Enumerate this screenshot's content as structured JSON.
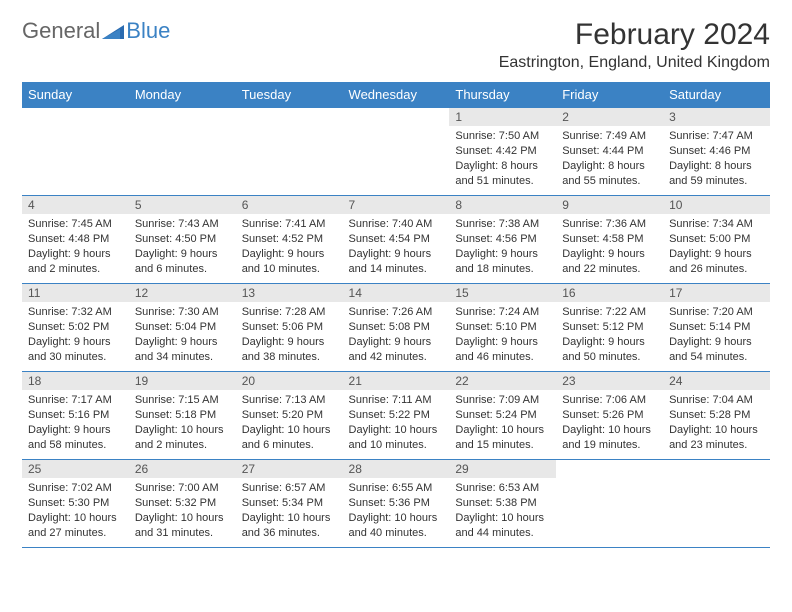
{
  "brand": {
    "part1": "General",
    "part2": "Blue",
    "accent": "#3b82c4",
    "gray": "#666"
  },
  "title": {
    "month": "February 2024",
    "location": "Eastrington, England, United Kingdom"
  },
  "colors": {
    "headerBg": "#3b82c4",
    "headerText": "#ffffff",
    "dayNumBg": "#e8e8e8",
    "border": "#3b82c4",
    "text": "#333333"
  },
  "dayNames": [
    "Sunday",
    "Monday",
    "Tuesday",
    "Wednesday",
    "Thursday",
    "Friday",
    "Saturday"
  ],
  "weeks": [
    [
      null,
      null,
      null,
      null,
      {
        "n": "1",
        "sr": "Sunrise: 7:50 AM",
        "ss": "Sunset: 4:42 PM",
        "dl": "Daylight: 8 hours and 51 minutes."
      },
      {
        "n": "2",
        "sr": "Sunrise: 7:49 AM",
        "ss": "Sunset: 4:44 PM",
        "dl": "Daylight: 8 hours and 55 minutes."
      },
      {
        "n": "3",
        "sr": "Sunrise: 7:47 AM",
        "ss": "Sunset: 4:46 PM",
        "dl": "Daylight: 8 hours and 59 minutes."
      }
    ],
    [
      {
        "n": "4",
        "sr": "Sunrise: 7:45 AM",
        "ss": "Sunset: 4:48 PM",
        "dl": "Daylight: 9 hours and 2 minutes."
      },
      {
        "n": "5",
        "sr": "Sunrise: 7:43 AM",
        "ss": "Sunset: 4:50 PM",
        "dl": "Daylight: 9 hours and 6 minutes."
      },
      {
        "n": "6",
        "sr": "Sunrise: 7:41 AM",
        "ss": "Sunset: 4:52 PM",
        "dl": "Daylight: 9 hours and 10 minutes."
      },
      {
        "n": "7",
        "sr": "Sunrise: 7:40 AM",
        "ss": "Sunset: 4:54 PM",
        "dl": "Daylight: 9 hours and 14 minutes."
      },
      {
        "n": "8",
        "sr": "Sunrise: 7:38 AM",
        "ss": "Sunset: 4:56 PM",
        "dl": "Daylight: 9 hours and 18 minutes."
      },
      {
        "n": "9",
        "sr": "Sunrise: 7:36 AM",
        "ss": "Sunset: 4:58 PM",
        "dl": "Daylight: 9 hours and 22 minutes."
      },
      {
        "n": "10",
        "sr": "Sunrise: 7:34 AM",
        "ss": "Sunset: 5:00 PM",
        "dl": "Daylight: 9 hours and 26 minutes."
      }
    ],
    [
      {
        "n": "11",
        "sr": "Sunrise: 7:32 AM",
        "ss": "Sunset: 5:02 PM",
        "dl": "Daylight: 9 hours and 30 minutes."
      },
      {
        "n": "12",
        "sr": "Sunrise: 7:30 AM",
        "ss": "Sunset: 5:04 PM",
        "dl": "Daylight: 9 hours and 34 minutes."
      },
      {
        "n": "13",
        "sr": "Sunrise: 7:28 AM",
        "ss": "Sunset: 5:06 PM",
        "dl": "Daylight: 9 hours and 38 minutes."
      },
      {
        "n": "14",
        "sr": "Sunrise: 7:26 AM",
        "ss": "Sunset: 5:08 PM",
        "dl": "Daylight: 9 hours and 42 minutes."
      },
      {
        "n": "15",
        "sr": "Sunrise: 7:24 AM",
        "ss": "Sunset: 5:10 PM",
        "dl": "Daylight: 9 hours and 46 minutes."
      },
      {
        "n": "16",
        "sr": "Sunrise: 7:22 AM",
        "ss": "Sunset: 5:12 PM",
        "dl": "Daylight: 9 hours and 50 minutes."
      },
      {
        "n": "17",
        "sr": "Sunrise: 7:20 AM",
        "ss": "Sunset: 5:14 PM",
        "dl": "Daylight: 9 hours and 54 minutes."
      }
    ],
    [
      {
        "n": "18",
        "sr": "Sunrise: 7:17 AM",
        "ss": "Sunset: 5:16 PM",
        "dl": "Daylight: 9 hours and 58 minutes."
      },
      {
        "n": "19",
        "sr": "Sunrise: 7:15 AM",
        "ss": "Sunset: 5:18 PM",
        "dl": "Daylight: 10 hours and 2 minutes."
      },
      {
        "n": "20",
        "sr": "Sunrise: 7:13 AM",
        "ss": "Sunset: 5:20 PM",
        "dl": "Daylight: 10 hours and 6 minutes."
      },
      {
        "n": "21",
        "sr": "Sunrise: 7:11 AM",
        "ss": "Sunset: 5:22 PM",
        "dl": "Daylight: 10 hours and 10 minutes."
      },
      {
        "n": "22",
        "sr": "Sunrise: 7:09 AM",
        "ss": "Sunset: 5:24 PM",
        "dl": "Daylight: 10 hours and 15 minutes."
      },
      {
        "n": "23",
        "sr": "Sunrise: 7:06 AM",
        "ss": "Sunset: 5:26 PM",
        "dl": "Daylight: 10 hours and 19 minutes."
      },
      {
        "n": "24",
        "sr": "Sunrise: 7:04 AM",
        "ss": "Sunset: 5:28 PM",
        "dl": "Daylight: 10 hours and 23 minutes."
      }
    ],
    [
      {
        "n": "25",
        "sr": "Sunrise: 7:02 AM",
        "ss": "Sunset: 5:30 PM",
        "dl": "Daylight: 10 hours and 27 minutes."
      },
      {
        "n": "26",
        "sr": "Sunrise: 7:00 AM",
        "ss": "Sunset: 5:32 PM",
        "dl": "Daylight: 10 hours and 31 minutes."
      },
      {
        "n": "27",
        "sr": "Sunrise: 6:57 AM",
        "ss": "Sunset: 5:34 PM",
        "dl": "Daylight: 10 hours and 36 minutes."
      },
      {
        "n": "28",
        "sr": "Sunrise: 6:55 AM",
        "ss": "Sunset: 5:36 PM",
        "dl": "Daylight: 10 hours and 40 minutes."
      },
      {
        "n": "29",
        "sr": "Sunrise: 6:53 AM",
        "ss": "Sunset: 5:38 PM",
        "dl": "Daylight: 10 hours and 44 minutes."
      },
      null,
      null
    ]
  ]
}
